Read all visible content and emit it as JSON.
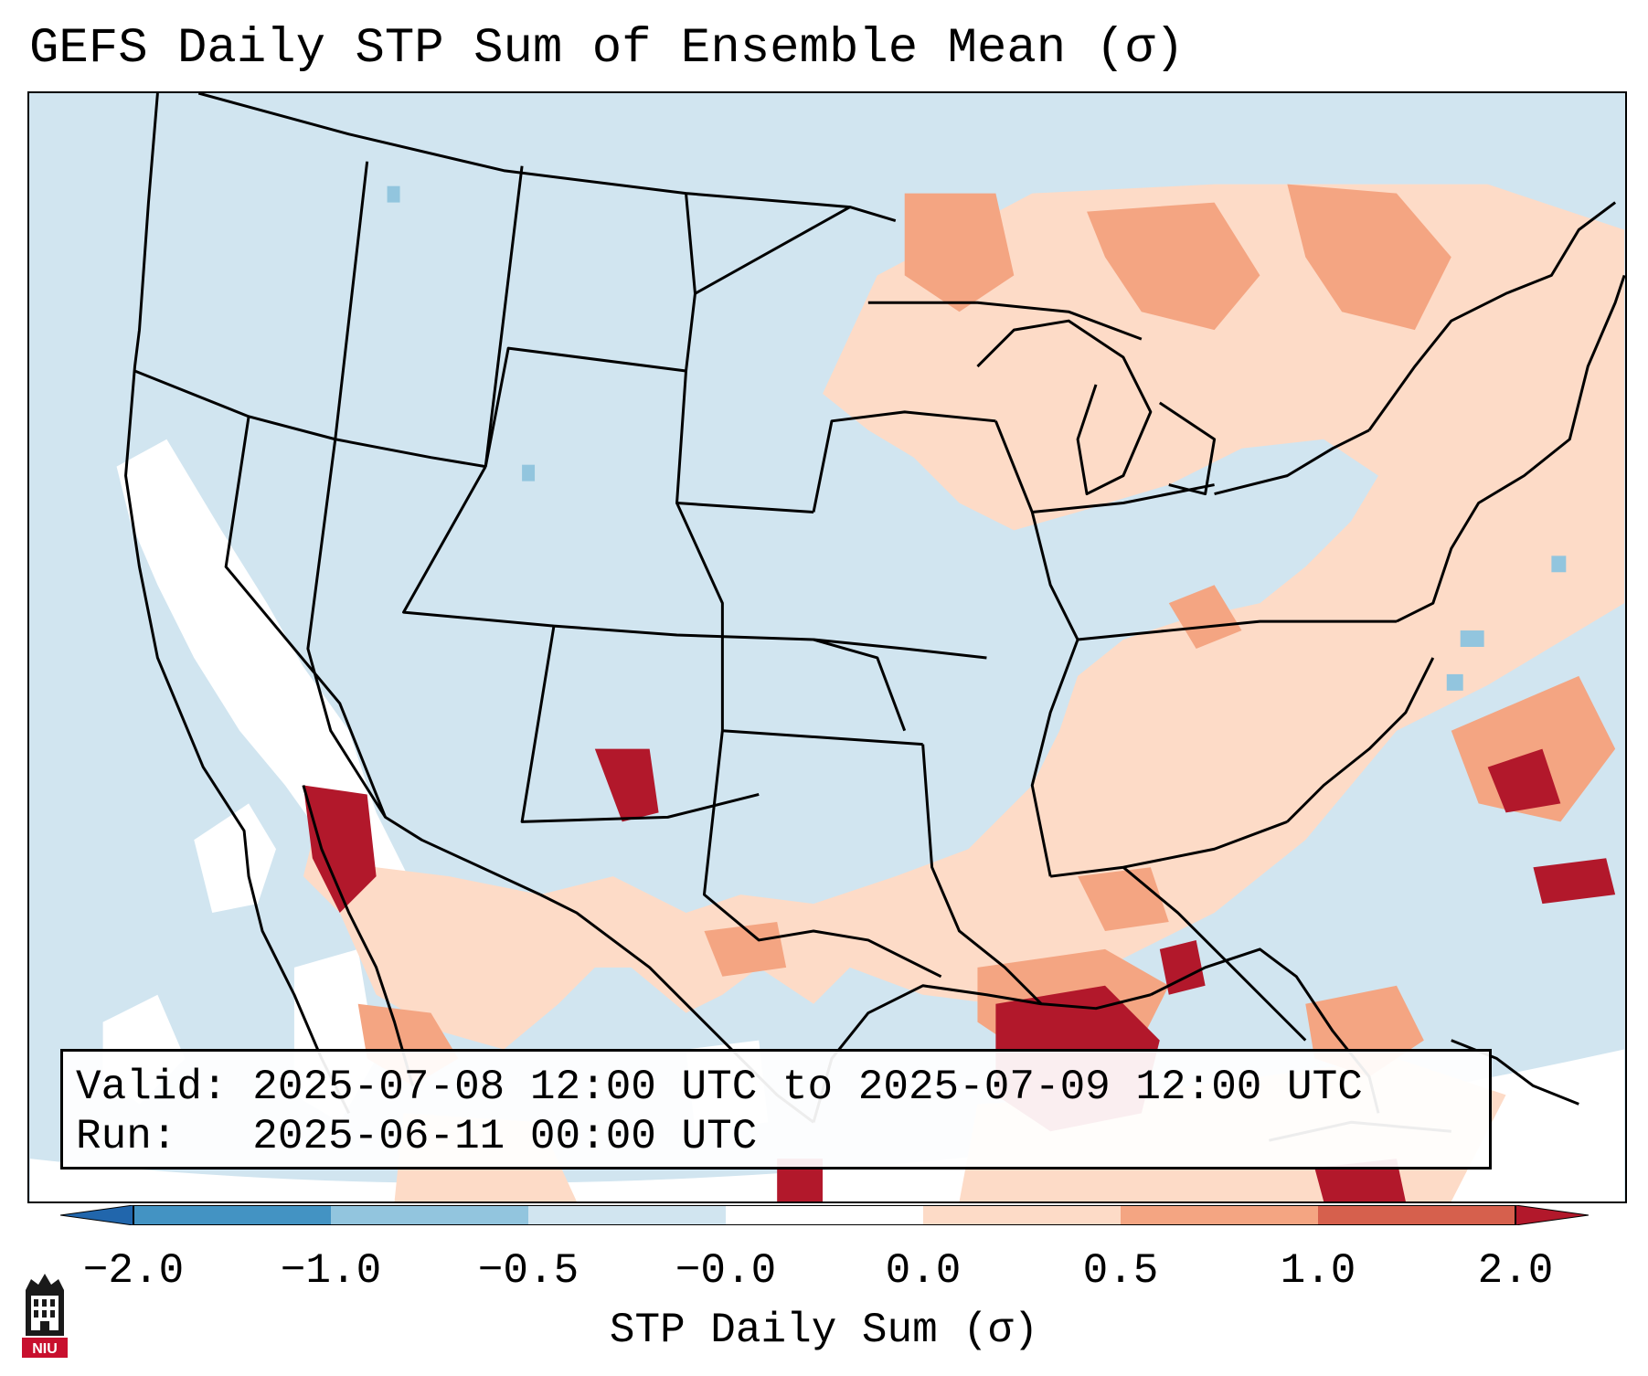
{
  "title": "GEFS Daily STP Sum of Ensemble Mean (σ)",
  "info": {
    "valid_line": "Valid: 2025-07-08 12:00 UTC to 2025-07-09 12:00 UTC",
    "run_line": "Run:   2025-06-11 00:00 UTC"
  },
  "colorbar": {
    "label": "STP Daily Sum (σ)",
    "ticks": [
      "−2.0",
      "−1.0",
      "−0.5",
      "−0.0",
      "0.0",
      "0.5",
      "1.0",
      "2.0"
    ],
    "colors": [
      "#2166ac",
      "#4393c3",
      "#92c5de",
      "#d1e5f0",
      "#ffffff",
      "#fddbc7",
      "#f4a582",
      "#d6604d",
      "#b2182b"
    ]
  },
  "map": {
    "region": "Contiguous United States",
    "ocean_color": "#d1e5f0"
  },
  "logo": {
    "text": "NIU",
    "color": "#c8102e"
  }
}
